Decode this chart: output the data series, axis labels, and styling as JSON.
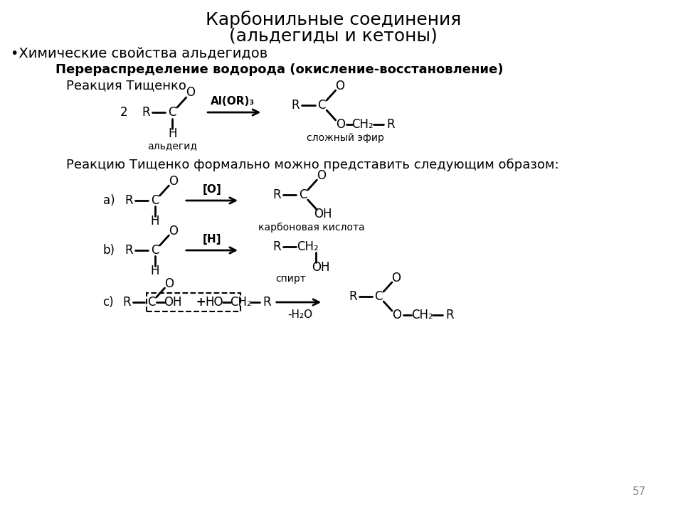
{
  "title_line1": "Карбонильные соединения",
  "title_line2": "(альдегиды и кетоны)",
  "subtitle": "•Химические свойства альдегидов",
  "bold_heading": "Перераспределение водорода (окисление-восстановление)",
  "reaction_tischenko": "Реакция Тищенко",
  "tischenko_formal": "Реакцию Тищенко формально можно представить следующим образом:",
  "page_number": "57",
  "bg_color": "#ffffff",
  "text_color": "#000000",
  "page_num_color": "#888888",
  "font_size_title": 18,
  "font_size_text": 14,
  "font_size_small": 11
}
